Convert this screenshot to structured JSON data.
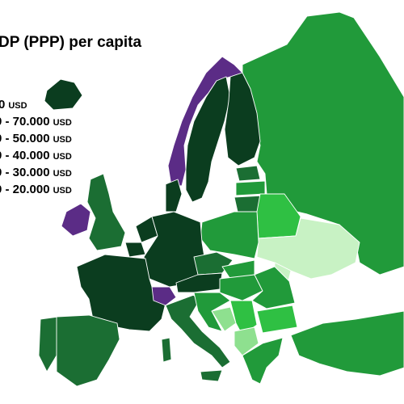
{
  "title": "DP (PPP) per capita",
  "legend": [
    {
      "label": "0",
      "unit": "USD"
    },
    {
      "label": "0 - 70.000",
      "unit": "USD"
    },
    {
      "label": "0 - 50.000",
      "unit": "USD"
    },
    {
      "label": "0 - 40.000",
      "unit": "USD"
    },
    {
      "label": "0 - 30.000",
      "unit": "USD"
    },
    {
      "label": "0 - 20.000",
      "unit": "USD"
    }
  ],
  "colors": {
    "highest": "#5b2c86",
    "very_high": "#0b3d1f",
    "high": "#1b6e33",
    "mid_high": "#219a3a",
    "mid": "#2fc043",
    "light": "#8ee08f",
    "pale": "#c8f2c4",
    "sea": "#ffffff"
  }
}
